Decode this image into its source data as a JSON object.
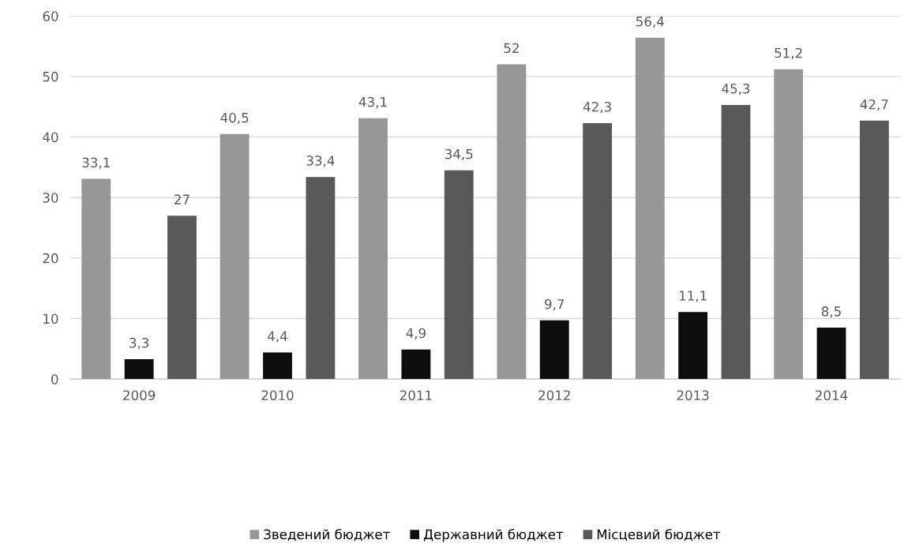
{
  "chart_data": {
    "type": "bar",
    "categories": [
      "2009",
      "2010",
      "2011",
      "2012",
      "2013",
      "2014"
    ],
    "series": [
      {
        "name": "Зведений бюджет",
        "color": "#969696",
        "values": [
          33.1,
          40.5,
          43.1,
          52,
          56.4,
          51.2
        ],
        "value_labels": [
          "33,1",
          "40,5",
          "43,1",
          "52",
          "56,4",
          "51,2"
        ]
      },
      {
        "name": "Державний бюджет",
        "color": "#0d0d0d",
        "values": [
          3.3,
          4.4,
          4.9,
          9.7,
          11.1,
          8.5
        ],
        "value_labels": [
          "3,3",
          "4,4",
          "4,9",
          "9,7",
          "11,1",
          "8,5"
        ]
      },
      {
        "name": "Місцевий бюджет",
        "color": "#595959",
        "values": [
          27,
          33.4,
          34.5,
          42.3,
          45.3,
          42.7
        ],
        "value_labels": [
          "27",
          "33,4",
          "34,5",
          "42,3",
          "45,3",
          "42,7"
        ]
      }
    ],
    "ylim": [
      0,
      60
    ],
    "yticks": [
      0,
      10,
      20,
      30,
      40,
      50,
      60
    ],
    "grid": "y",
    "legend": "bottom"
  }
}
